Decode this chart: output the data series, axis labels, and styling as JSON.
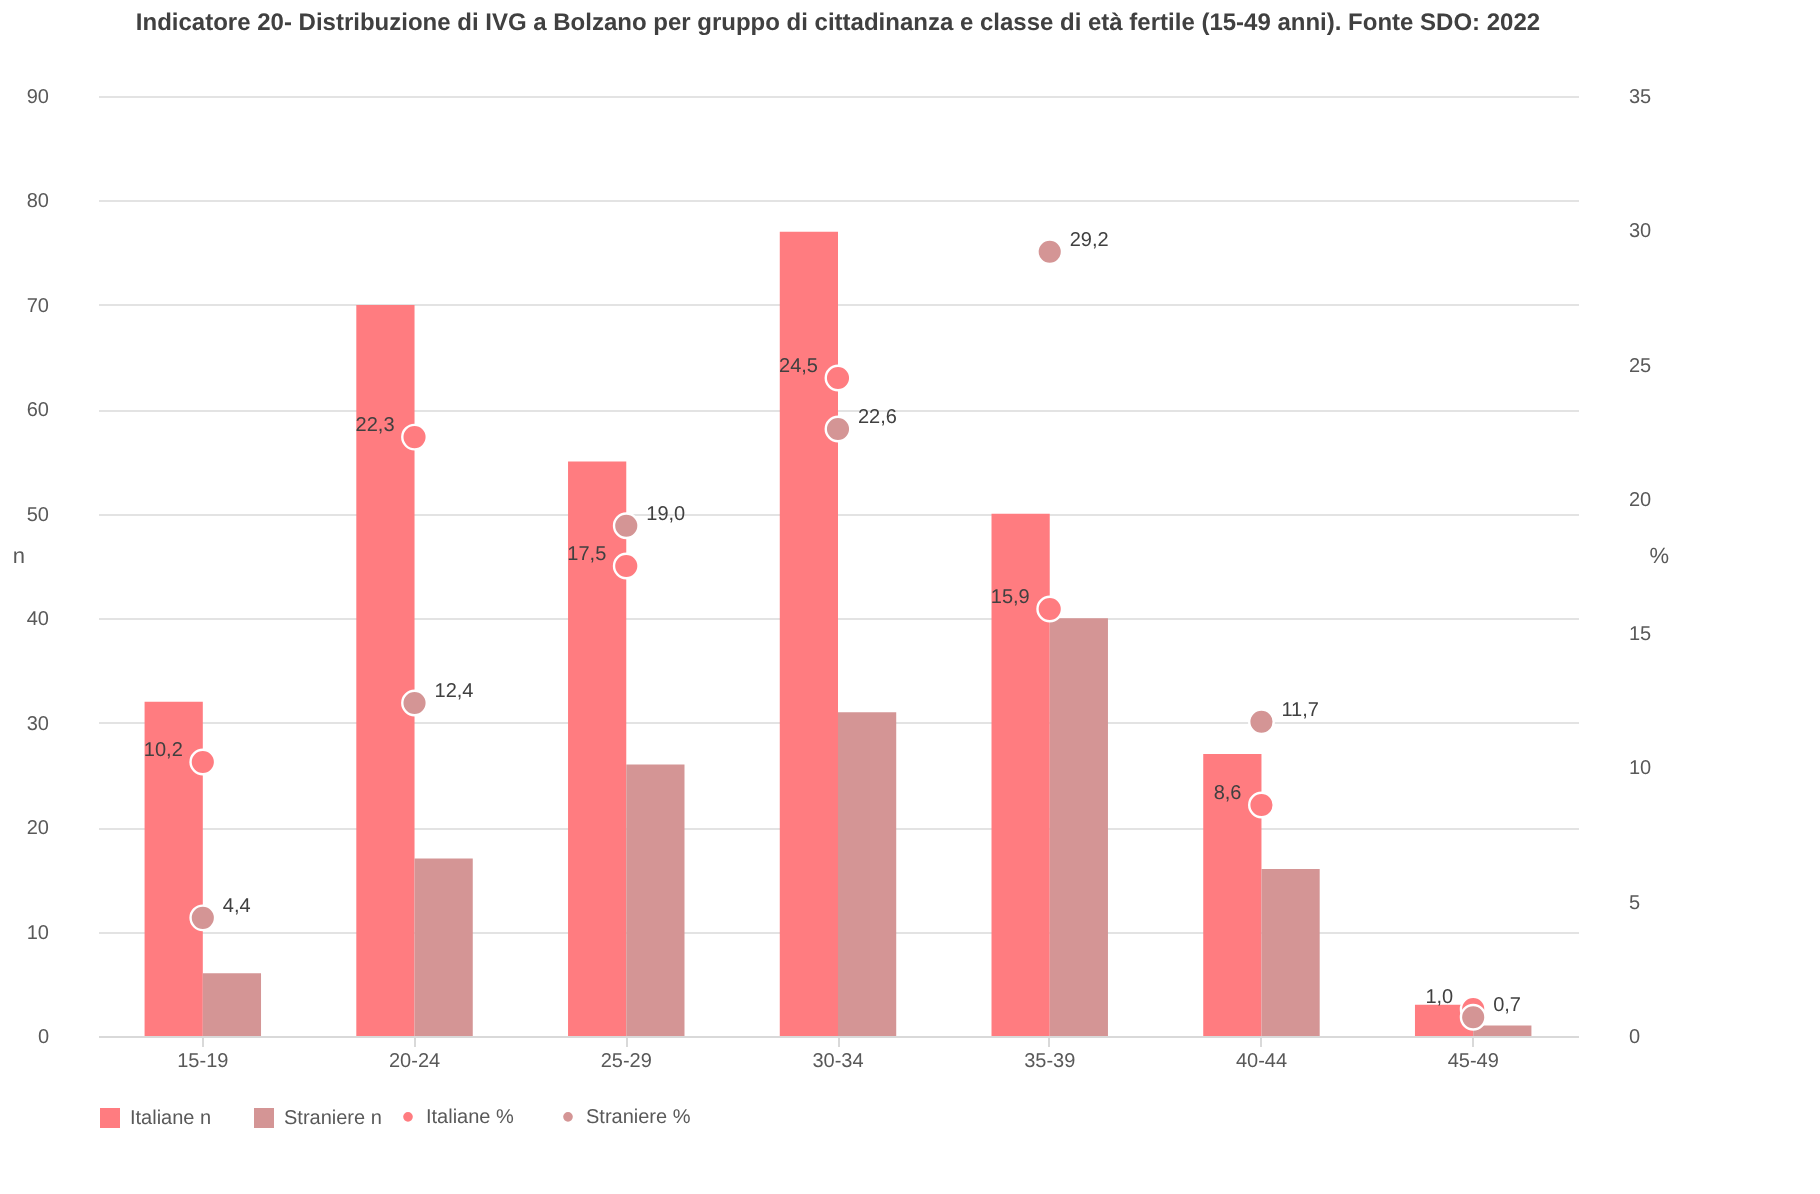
{
  "chart_data": {
    "type": "bar",
    "title": "Indicatore 20- Distribuzione di IVG a Bolzano per gruppo di cittadinanza e classe di età fertile (15-49 anni). Fonte SDO: 2022",
    "categories": [
      "15-19",
      "20-24",
      "25-29",
      "30-34",
      "35-39",
      "40-44",
      "45-49"
    ],
    "series": [
      {
        "name": "Italiane n",
        "color": "#ff7c80",
        "values": [
          32,
          70,
          55,
          77,
          50,
          27,
          3
        ]
      },
      {
        "name": "Straniere n",
        "color": "#d49595",
        "values": [
          6,
          17,
          26,
          31,
          40,
          16,
          1
        ]
      },
      {
        "name": "Italiane %",
        "type": "scatter",
        "axis": "y2",
        "color": "#ff7c80",
        "values": [
          10.2,
          22.3,
          17.5,
          24.5,
          15.9,
          8.6,
          1.0
        ],
        "value_labels": [
          "10,2",
          "22,3",
          "17,5",
          "24,5",
          "15,9",
          "8,6",
          "1,0"
        ]
      },
      {
        "name": "Straniere %",
        "type": "scatter",
        "axis": "y2",
        "color": "#d49595",
        "values": [
          4.4,
          12.4,
          19.0,
          22.6,
          29.2,
          11.7,
          0.7
        ],
        "value_labels": [
          "4,4",
          "12,4",
          "19,0",
          "22,6",
          "29,2",
          "11,7",
          "0,7"
        ]
      }
    ],
    "ylabel": "n",
    "y2label": "%",
    "ylim": [
      0,
      90
    ],
    "yticks": [
      0,
      10,
      20,
      30,
      40,
      50,
      60,
      70,
      80,
      90
    ],
    "y2lim": [
      0,
      35
    ],
    "y2ticks": [
      0,
      5,
      10,
      15,
      20,
      25,
      30,
      35
    ],
    "grid": "y",
    "legend": "bottom",
    "marker": "circle"
  }
}
